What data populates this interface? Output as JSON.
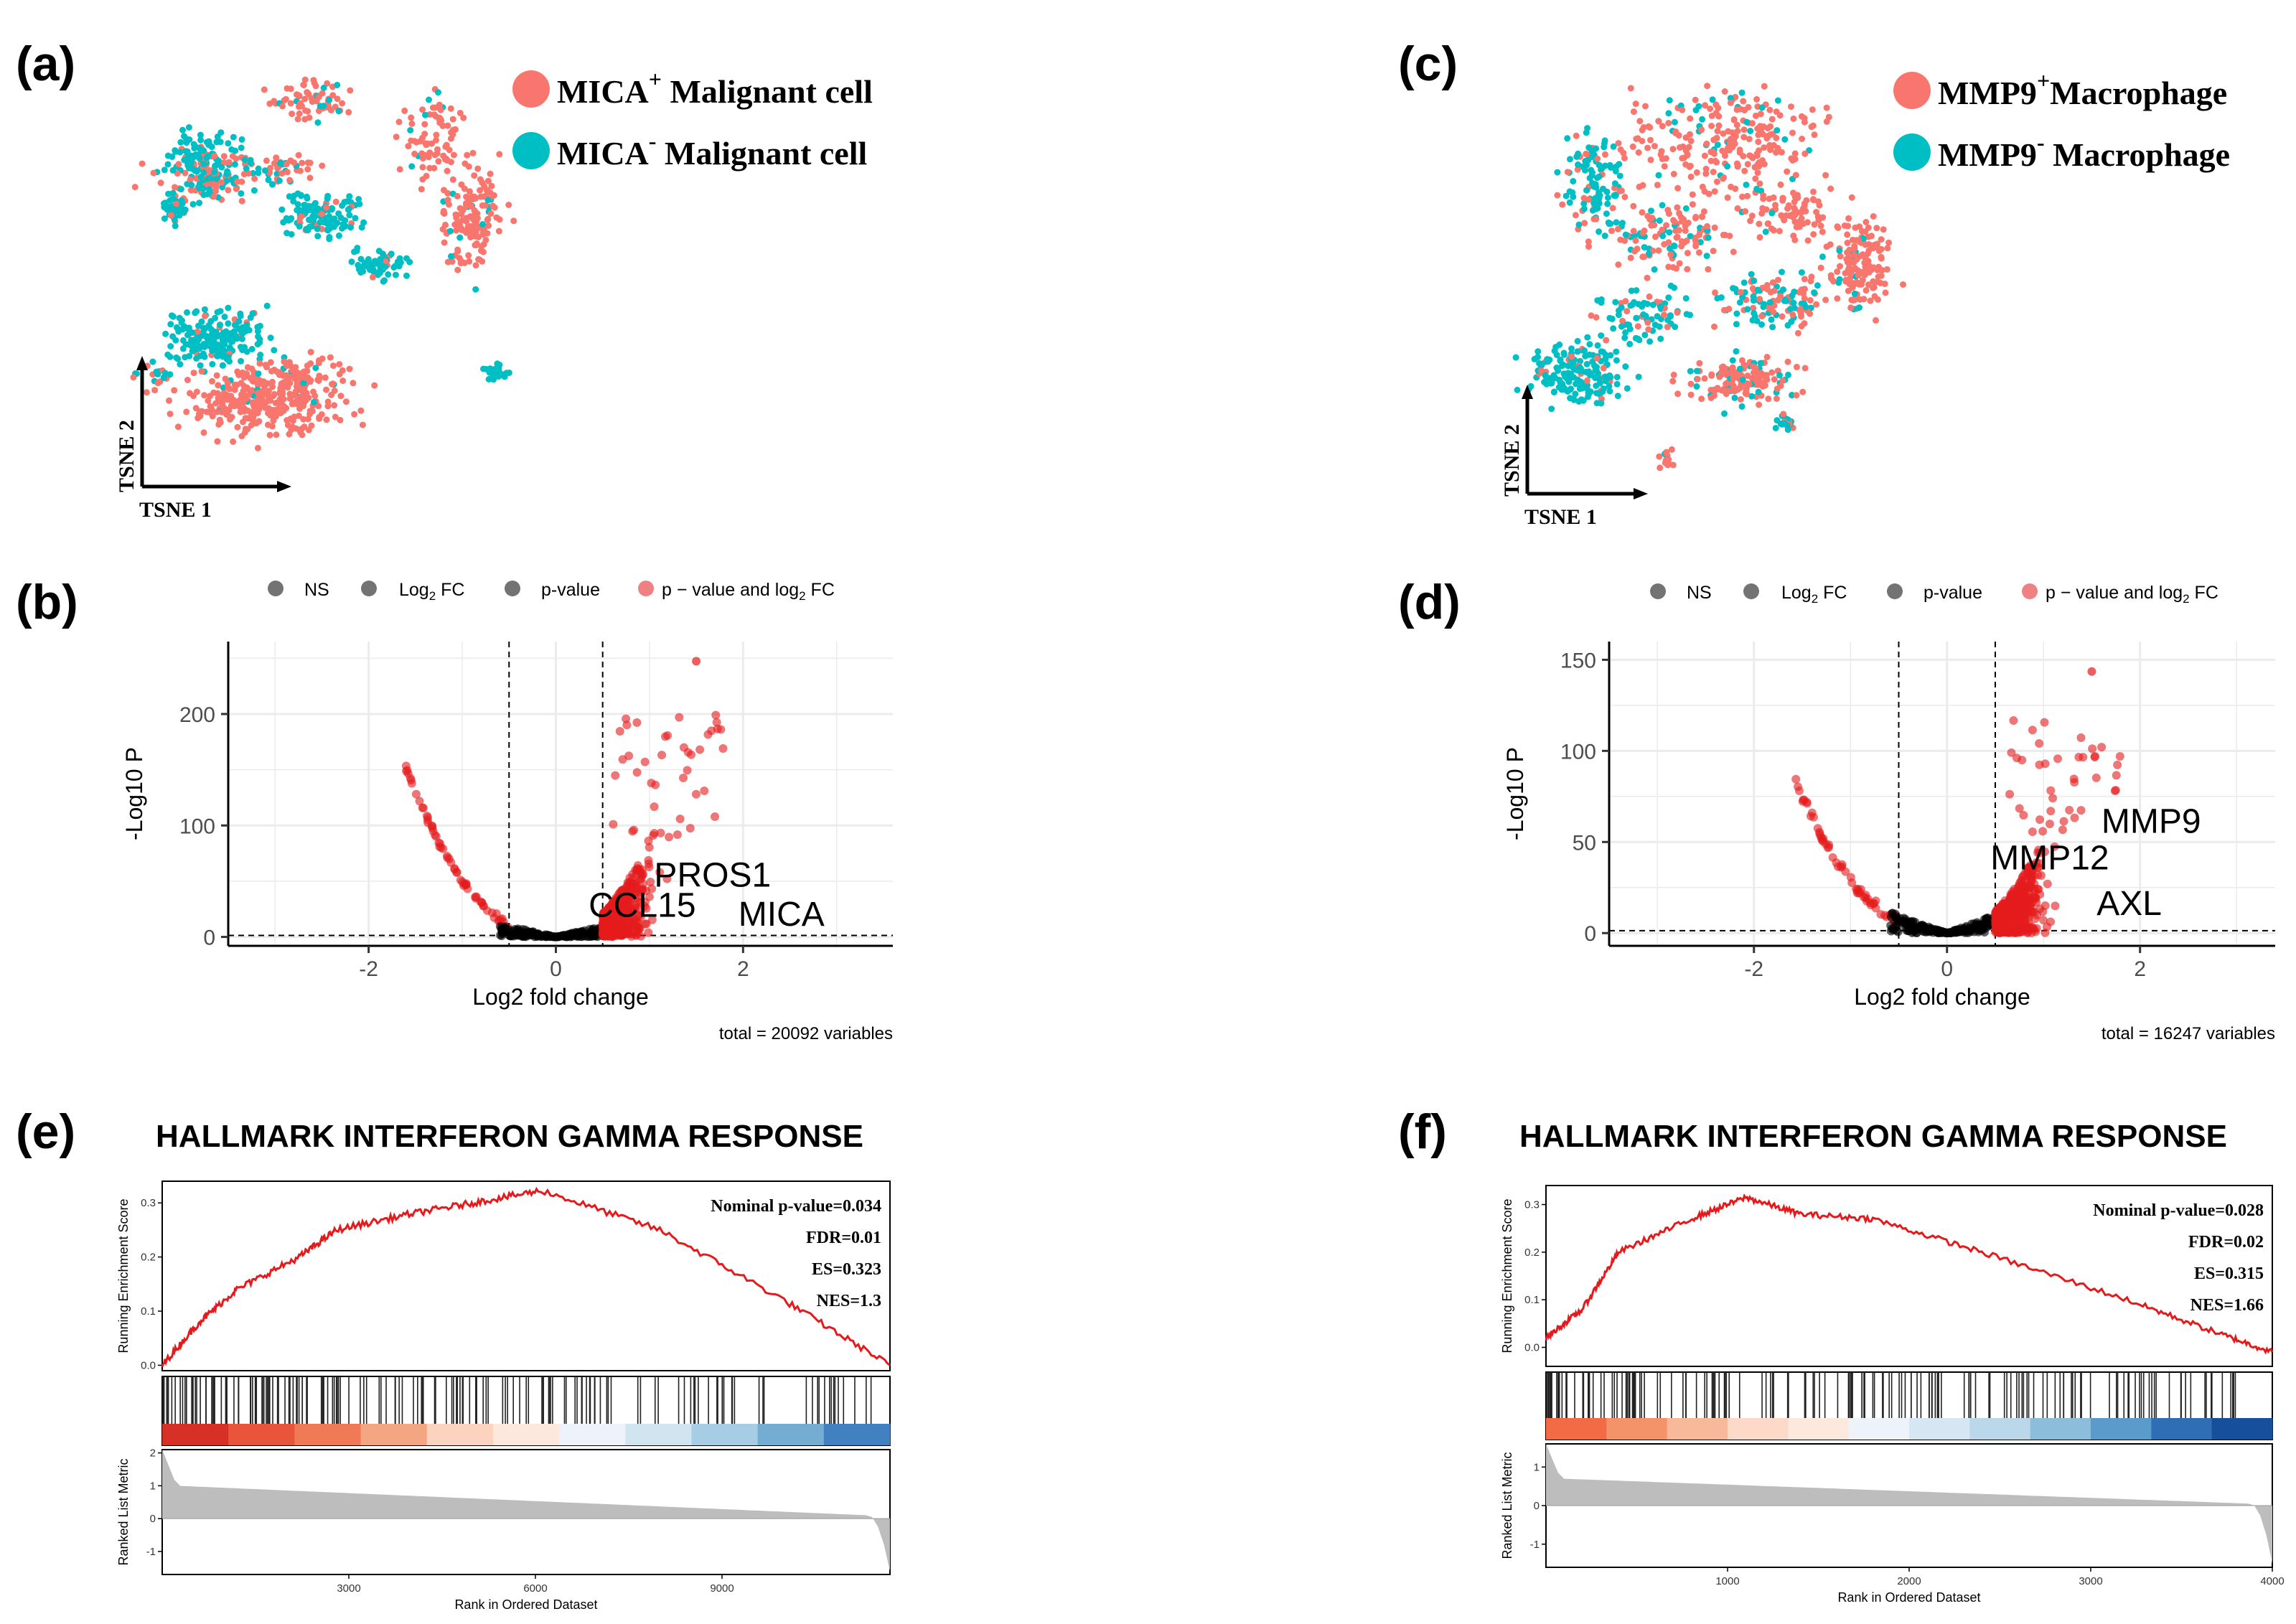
{
  "panels": {
    "a": {
      "letter": "(a)",
      "legend": [
        {
          "main": "MICA",
          "sup": "+",
          "rest": " Malignant cell"
        },
        {
          "main": "MICA",
          "sup": "-",
          "rest": " Malignant cell"
        }
      ],
      "xlabel": "TSNE 1",
      "ylabel": "TSNE 2"
    },
    "b": {
      "letter": "(b)"
    },
    "c": {
      "letter": "(c)",
      "legend": [
        {
          "main": "MMP9",
          "sup": "+",
          "rest": "Macrophage"
        },
        {
          "main": "MMP9",
          "sup": "-",
          "rest": " Macrophage"
        }
      ],
      "xlabel": "TSNE 1",
      "ylabel": "TSNE 2"
    },
    "d": {
      "letter": "(d)"
    },
    "e": {
      "letter": "(e)"
    },
    "f": {
      "letter": "(f)"
    }
  },
  "colors": {
    "positive": "#f8766d",
    "negative": "#00bfc4",
    "ns": "#000000",
    "sig": "#e41a1c",
    "gsea_line": "#e41a1c"
  },
  "volcano_legend": [
    {
      "label": "NS"
    },
    {
      "label": "Log",
      "sub": "2",
      "rest": " FC"
    },
    {
      "label": "p-value"
    },
    {
      "label": "p − value and log",
      "sub": "2",
      "rest": " FC"
    }
  ],
  "chart_data": [
    {
      "id": "b",
      "type": "scatter",
      "title": "",
      "xlabel": "Log2 fold change",
      "ylabel": "-Log10 P",
      "xlim": [
        -3.5,
        3.6
      ],
      "ylim": [
        -8,
        265
      ],
      "xticks": [
        -2,
        0,
        2
      ],
      "yticks": [
        0,
        100,
        200
      ],
      "fc_cutoff": 0.5,
      "p_cutoff": 1.3,
      "caption": "total = 20092 variables",
      "labels": [
        {
          "text": "PROS1",
          "x": 1.05,
          "y": 45
        },
        {
          "text": "CCL15",
          "x": 0.35,
          "y": 18
        },
        {
          "text": "MICA",
          "x": 1.95,
          "y": 10
        }
      ],
      "peak_fc": 1.5,
      "peak_p": 255
    },
    {
      "id": "d",
      "type": "scatter",
      "title": "",
      "xlabel": "Log2 fold change",
      "ylabel": "-Log10 P",
      "xlim": [
        -3.5,
        3.4
      ],
      "ylim": [
        -7,
        160
      ],
      "xticks": [
        -2,
        0,
        2
      ],
      "yticks": [
        0,
        50,
        100,
        150
      ],
      "fc_cutoff": 0.5,
      "p_cutoff": 1.3,
      "caption": "total = 16247 variables",
      "labels": [
        {
          "text": "MMP9",
          "x": 1.6,
          "y": 55
        },
        {
          "text": "MMP12",
          "x": 0.45,
          "y": 35
        },
        {
          "text": "AXL",
          "x": 1.55,
          "y": 10
        }
      ],
      "peak_fc": 1.5,
      "peak_p": 148
    },
    {
      "id": "e",
      "type": "line",
      "title": "HALLMARK INTERFERON GAMMA RESPONSE",
      "xlabel": "Rank in Ordered Dataset",
      "ylabel": "Running Enrichment Score",
      "ylabel2": "Ranked List Metric",
      "xmax": 11700,
      "xticks": [
        3000,
        6000,
        9000
      ],
      "es_ylim": [
        -0.01,
        0.34
      ],
      "es_yticks": [
        0.0,
        0.1,
        0.2,
        0.3
      ],
      "metric_ylim": [
        -1.7,
        2.1
      ],
      "metric_yticks": [
        -1,
        0,
        1,
        2
      ],
      "es_curve": [
        [
          0,
          0.0
        ],
        [
          600,
          0.08
        ],
        [
          1200,
          0.14
        ],
        [
          2200,
          0.2
        ],
        [
          2800,
          0.25
        ],
        [
          4000,
          0.28
        ],
        [
          5000,
          0.3
        ],
        [
          6100,
          0.323
        ],
        [
          8000,
          0.25
        ],
        [
          10000,
          0.12
        ],
        [
          11700,
          0.0
        ]
      ],
      "stats": [
        "Nominal p-value=0.034",
        "FDR=0.01",
        "ES=0.323",
        "NES=1.3"
      ],
      "metric": {
        "start": 2.1,
        "level": 1.0,
        "end": 0.1,
        "min": -1.6
      },
      "heat_colors": [
        "#d73027",
        "#e8553a",
        "#f07a56",
        "#f4a582",
        "#fbd3bf",
        "#fde8dd",
        "#eef2fb",
        "#d1e5f0",
        "#a6cde3",
        "#74add1",
        "#4281c1"
      ]
    },
    {
      "id": "f",
      "type": "line",
      "title": "HALLMARK INTERFERON GAMMA RESPONSE",
      "xlabel": "Rank in Ordered Dataset",
      "ylabel": "Running Enrichment Score",
      "ylabel2": "Ranked List Metric",
      "xmax": 4000,
      "xticks": [
        1000,
        2000,
        3000,
        4000
      ],
      "es_ylim": [
        -0.04,
        0.34
      ],
      "es_yticks": [
        0.0,
        0.1,
        0.2,
        0.3
      ],
      "metric_ylim": [
        -1.6,
        1.6
      ],
      "metric_yticks": [
        -1,
        0,
        1
      ],
      "es_curve": [
        [
          0,
          0.02
        ],
        [
          200,
          0.08
        ],
        [
          400,
          0.2
        ],
        [
          800,
          0.27
        ],
        [
          1100,
          0.315
        ],
        [
          1400,
          0.28
        ],
        [
          1800,
          0.27
        ],
        [
          2400,
          0.2
        ],
        [
          3200,
          0.1
        ],
        [
          3700,
          0.03
        ],
        [
          4000,
          -0.01
        ]
      ],
      "stats": [
        "Nominal p-value=0.028",
        "FDR=0.02",
        "ES=0.315",
        "NES=1.66"
      ],
      "metric": {
        "start": 1.6,
        "level": 0.7,
        "end": 0.05,
        "min": -1.5
      },
      "heat_colors": [
        "#f26b45",
        "#f4936a",
        "#f8b89a",
        "#fcd9c8",
        "#fde8dd",
        "#eef2fb",
        "#d7e6f3",
        "#bad8ea",
        "#8cbedc",
        "#5a9bcc",
        "#2f6db4",
        "#164f9b"
      ]
    }
  ]
}
